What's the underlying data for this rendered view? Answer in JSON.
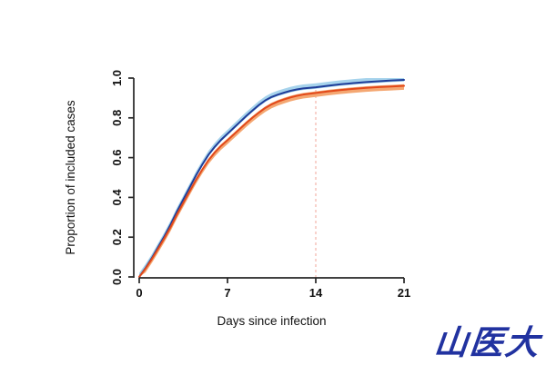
{
  "figure": {
    "background": "#ffffff"
  },
  "chart_data": {
    "type": "line",
    "title": "",
    "xlabel": "Days since infection",
    "ylabel": "Proportion of included cases",
    "xlim": [
      0,
      21
    ],
    "ylim": [
      0,
      1
    ],
    "xticks": [
      0,
      7,
      14,
      21
    ],
    "xtick_labels": [
      "0",
      "7",
      "14",
      "21"
    ],
    "yticks": [
      0.0,
      0.2,
      0.4,
      0.6,
      0.8,
      1.0
    ],
    "ytick_labels": [
      "0.0",
      "0.2",
      "0.4",
      "0.6",
      "0.8",
      "1.0"
    ],
    "grid": false,
    "legend": "none",
    "axis_color": "#262626",
    "tick_label_color": "#111111",
    "reference_line": {
      "x": 14,
      "style": "dashed",
      "color": "#f2b3aa"
    },
    "x": [
      0,
      0.5,
      1,
      1.5,
      2,
      2.5,
      3,
      3.5,
      4,
      4.5,
      5,
      5.5,
      6,
      6.5,
      7,
      7.5,
      8,
      8.5,
      9,
      9.5,
      10,
      10.5,
      11,
      11.5,
      12,
      12.5,
      13,
      13.5,
      14,
      15,
      16,
      17,
      18,
      19,
      20,
      21
    ],
    "series": [
      {
        "name": "blue-curve",
        "color": "#1f3d99",
        "band_color": "#a6d3ec",
        "band_above": 0.02,
        "band_below": 0.008,
        "values": [
          0,
          0.045,
          0.095,
          0.15,
          0.205,
          0.265,
          0.33,
          0.39,
          0.45,
          0.51,
          0.565,
          0.615,
          0.655,
          0.69,
          0.72,
          0.75,
          0.78,
          0.81,
          0.838,
          0.865,
          0.888,
          0.905,
          0.917,
          0.927,
          0.936,
          0.943,
          0.948,
          0.951,
          0.954,
          0.962,
          0.969,
          0.975,
          0.98,
          0.984,
          0.988,
          0.991
        ]
      },
      {
        "name": "orange-curve",
        "color": "#e2491b",
        "band_color": "#f4a772",
        "band_above": 0.008,
        "band_below": 0.02,
        "values": [
          0,
          0.042,
          0.09,
          0.142,
          0.195,
          0.252,
          0.315,
          0.373,
          0.431,
          0.488,
          0.54,
          0.588,
          0.627,
          0.66,
          0.688,
          0.717,
          0.746,
          0.775,
          0.802,
          0.827,
          0.85,
          0.868,
          0.882,
          0.893,
          0.903,
          0.911,
          0.917,
          0.921,
          0.925,
          0.933,
          0.94,
          0.946,
          0.951,
          0.955,
          0.958,
          0.961
        ]
      }
    ]
  },
  "logo": {
    "text": "山医大",
    "color": "#2132a0"
  }
}
